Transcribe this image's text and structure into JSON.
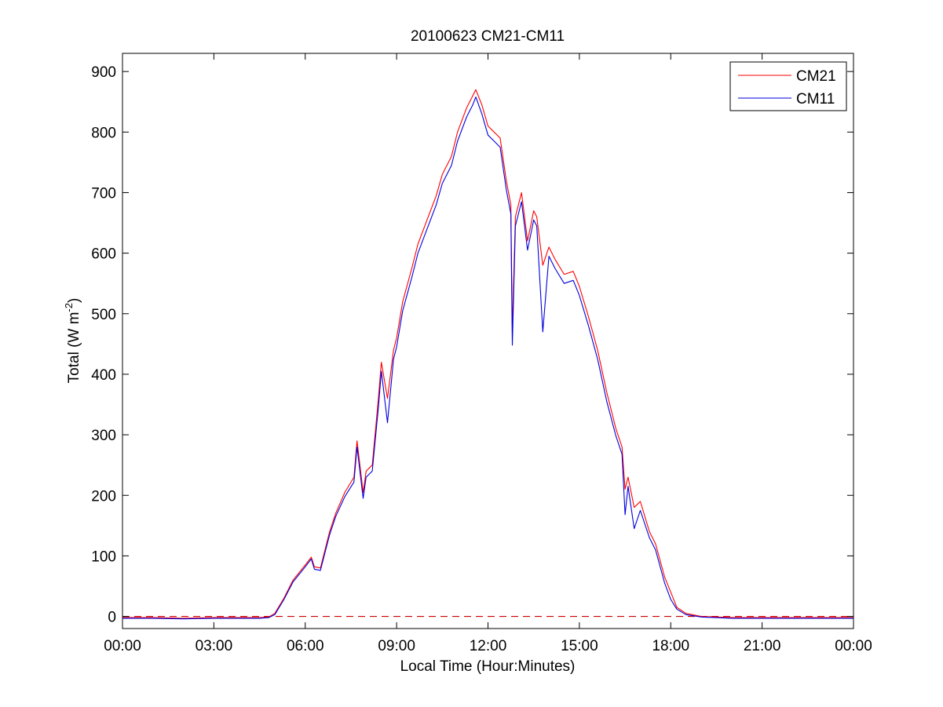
{
  "chart_data": {
    "type": "line",
    "title": "20100623 CM21-CM11",
    "xlabel": "Local Time (Hour:Minutes)",
    "ylabel": {
      "base": "Total (W m",
      "sup": "-2",
      "end": ")"
    },
    "xlim": [
      0,
      24
    ],
    "ylim": [
      -20,
      930
    ],
    "xticks": [
      0,
      3,
      6,
      9,
      12,
      15,
      18,
      21,
      24
    ],
    "xticklabels": [
      "00:00",
      "03:00",
      "06:00",
      "09:00",
      "12:00",
      "15:00",
      "18:00",
      "21:00",
      "00:00"
    ],
    "yticks": [
      0,
      100,
      200,
      300,
      400,
      500,
      600,
      700,
      800,
      900
    ],
    "grid": false,
    "legend_position": "top-right",
    "reference_line": {
      "y": 0,
      "color": "#cc0000",
      "style": "dashed"
    },
    "series": [
      {
        "name": "CM21",
        "color": "#ff0000",
        "x": [
          0,
          1,
          2,
          3,
          4,
          4.5,
          4.8,
          5.0,
          5.3,
          5.6,
          6.0,
          6.2,
          6.3,
          6.5,
          6.8,
          7.0,
          7.3,
          7.6,
          7.7,
          7.9,
          8.0,
          8.2,
          8.4,
          8.5,
          8.7,
          8.9,
          9.0,
          9.2,
          9.5,
          9.7,
          10.0,
          10.3,
          10.5,
          10.8,
          11.0,
          11.3,
          11.5,
          11.6,
          11.8,
          12.0,
          12.2,
          12.4,
          12.6,
          12.75,
          12.8,
          12.9,
          13.1,
          13.3,
          13.5,
          13.6,
          13.8,
          14.0,
          14.2,
          14.5,
          14.8,
          15.0,
          15.3,
          15.6,
          15.9,
          16.2,
          16.4,
          16.5,
          16.6,
          16.8,
          17.0,
          17.3,
          17.5,
          17.8,
          18.0,
          18.2,
          18.5,
          19.0,
          19.5,
          20,
          21,
          22,
          23,
          24
        ],
        "y": [
          -2,
          -2,
          -3,
          -2,
          -2,
          -2,
          -1,
          5,
          30,
          60,
          85,
          98,
          82,
          80,
          140,
          170,
          205,
          230,
          290,
          205,
          240,
          250,
          360,
          420,
          360,
          440,
          460,
          520,
          575,
          615,
          655,
          695,
          730,
          760,
          800,
          840,
          860,
          870,
          845,
          810,
          800,
          790,
          720,
          680,
          470,
          660,
          700,
          620,
          670,
          660,
          580,
          610,
          590,
          565,
          570,
          545,
          495,
          440,
          370,
          310,
          280,
          210,
          230,
          180,
          190,
          140,
          120,
          65,
          40,
          15,
          5,
          0,
          -1,
          -2,
          -2,
          -2,
          -2,
          -2
        ]
      },
      {
        "name": "CM11",
        "color": "#0000dd",
        "x": [
          0,
          1,
          2,
          3,
          4,
          4.5,
          4.8,
          5.0,
          5.3,
          5.6,
          6.0,
          6.2,
          6.3,
          6.5,
          6.8,
          7.0,
          7.3,
          7.6,
          7.7,
          7.9,
          8.0,
          8.2,
          8.4,
          8.5,
          8.7,
          8.9,
          9.0,
          9.2,
          9.5,
          9.7,
          10.0,
          10.3,
          10.5,
          10.8,
          11.0,
          11.3,
          11.5,
          11.6,
          11.8,
          12.0,
          12.2,
          12.4,
          12.6,
          12.75,
          12.8,
          12.9,
          13.1,
          13.3,
          13.5,
          13.6,
          13.8,
          14.0,
          14.2,
          14.5,
          14.8,
          15.0,
          15.3,
          15.6,
          15.9,
          16.2,
          16.4,
          16.5,
          16.6,
          16.8,
          17.0,
          17.3,
          17.5,
          17.8,
          18.0,
          18.2,
          18.5,
          19.0,
          19.5,
          20,
          21,
          22,
          23,
          24
        ],
        "y": [
          -3,
          -3,
          -4,
          -3,
          -3,
          -3,
          -2,
          3,
          28,
          57,
          82,
          95,
          78,
          76,
          135,
          165,
          198,
          222,
          280,
          195,
          230,
          240,
          345,
          405,
          320,
          425,
          445,
          505,
          560,
          600,
          640,
          680,
          715,
          745,
          785,
          825,
          845,
          858,
          830,
          795,
          785,
          775,
          705,
          665,
          448,
          645,
          685,
          605,
          655,
          645,
          470,
          595,
          575,
          550,
          555,
          530,
          480,
          425,
          355,
          298,
          268,
          168,
          215,
          145,
          175,
          130,
          110,
          55,
          28,
          12,
          3,
          -1,
          -2,
          -3,
          -3,
          -3,
          -3,
          -3
        ]
      }
    ]
  }
}
